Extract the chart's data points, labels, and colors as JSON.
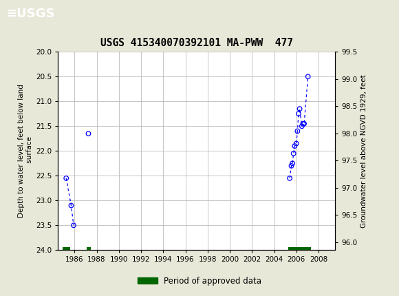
{
  "title": "USGS 415340070392101 MA-PWW  477",
  "ylabel_left": "Depth to water level, feet below land\n surface",
  "ylabel_right": "Groundwater level above NGVD 1929, feet",
  "header_color": "#1a6b3c",
  "xlim": [
    1984.5,
    2009.5
  ],
  "ylim_left": [
    24.0,
    20.0
  ],
  "ylim_right": [
    95.85,
    99.5
  ],
  "xticks": [
    1986,
    1988,
    1990,
    1992,
    1994,
    1996,
    1998,
    2000,
    2002,
    2004,
    2006,
    2008
  ],
  "yticks_left": [
    20.0,
    20.5,
    21.0,
    21.5,
    22.0,
    22.5,
    23.0,
    23.5,
    24.0
  ],
  "yticks_right": [
    96.0,
    96.5,
    97.0,
    97.5,
    98.0,
    98.5,
    99.0,
    99.5
  ],
  "clusters": [
    [
      {
        "year": 1985.25,
        "depth": 22.55
      },
      {
        "year": 1985.7,
        "depth": 23.1
      },
      {
        "year": 1985.92,
        "depth": 23.5
      }
    ],
    [
      {
        "year": 1987.25,
        "depth": 21.65
      }
    ],
    [
      {
        "year": 2005.4,
        "depth": 22.55
      },
      {
        "year": 2005.55,
        "depth": 22.3
      },
      {
        "year": 2005.65,
        "depth": 22.25
      },
      {
        "year": 2005.75,
        "depth": 22.05
      },
      {
        "year": 2005.85,
        "depth": 21.9
      },
      {
        "year": 2006.0,
        "depth": 21.85
      },
      {
        "year": 2006.1,
        "depth": 21.6
      },
      {
        "year": 2006.2,
        "depth": 21.25
      },
      {
        "year": 2006.3,
        "depth": 21.15
      },
      {
        "year": 2006.5,
        "depth": 21.5
      },
      {
        "year": 2006.6,
        "depth": 21.45
      },
      {
        "year": 2006.7,
        "depth": 21.45
      },
      {
        "year": 2007.05,
        "depth": 20.5
      }
    ]
  ],
  "approved_bars": [
    {
      "x_start": 1984.92,
      "x_end": 1985.6,
      "y": 24.0
    },
    {
      "x_start": 1987.1,
      "x_end": 1987.45,
      "y": 24.0
    },
    {
      "x_start": 2005.3,
      "x_end": 2007.3,
      "y": 24.0
    }
  ],
  "approved_color": "#006600",
  "point_color": "blue",
  "line_color": "blue",
  "bg_color": "#e8e8d8",
  "plot_bg_color": "#ffffff",
  "grid_color": "#bbbbbb"
}
